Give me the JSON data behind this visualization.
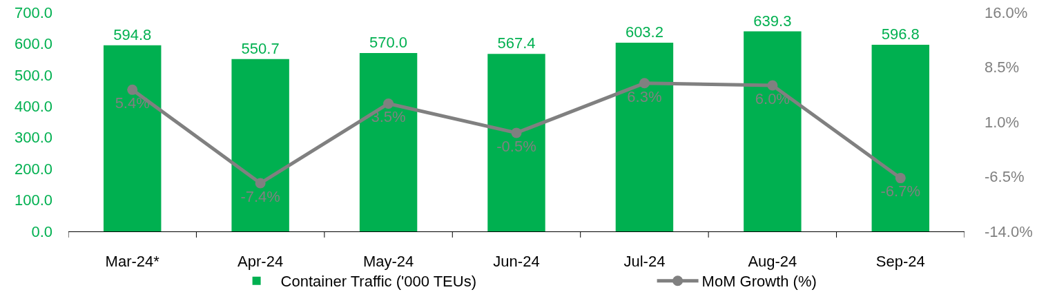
{
  "chart_data": {
    "type": "bar",
    "categories": [
      "Mar-24*",
      "Apr-24",
      "May-24",
      "Jun-24",
      "Jul-24",
      "Aug-24",
      "Sep-24"
    ],
    "series": [
      {
        "name": "Container Traffic ('000 TEUs)",
        "color": "#00b050",
        "values": [
          594.8,
          550.7,
          570.0,
          567.4,
          603.2,
          639.3,
          596.8
        ],
        "value_labels": [
          "594.8",
          "550.7",
          "570.0",
          "567.4",
          "603.2",
          "639.3",
          "596.8"
        ]
      },
      {
        "name": "MoM Growth (%)",
        "type": "line",
        "axis": "y2",
        "color": "#808080",
        "marker": "circle",
        "line_style": "solid",
        "values": [
          5.4,
          -7.4,
          3.5,
          -0.5,
          6.3,
          6.0,
          -6.7
        ],
        "value_labels": [
          "5.4%",
          "-7.4%",
          "3.5%",
          "-0.5%",
          "6.3%",
          "6.0%",
          "-6.7%"
        ]
      }
    ],
    "ylim": [
      0,
      700
    ],
    "yticks": [
      {
        "value": 0,
        "label": "0.0"
      },
      {
        "value": 100,
        "label": "100.0"
      },
      {
        "value": 200,
        "label": "200.0"
      },
      {
        "value": 300,
        "label": "300.0"
      },
      {
        "value": 400,
        "label": "400.0"
      },
      {
        "value": 500,
        "label": "500.0"
      },
      {
        "value": 600,
        "label": "600.0"
      },
      {
        "value": 700,
        "label": "700.0"
      }
    ],
    "y2lim": [
      -14,
      16
    ],
    "y2ticks": [
      {
        "value": -14,
        "label": "-14.0%"
      },
      {
        "value": -6.5,
        "label": "-6.5%"
      },
      {
        "value": 1,
        "label": "1.0%"
      },
      {
        "value": 8.5,
        "label": "8.5%"
      },
      {
        "value": 16,
        "label": "16.0%"
      }
    ],
    "legend": "bottom",
    "grid": false
  }
}
